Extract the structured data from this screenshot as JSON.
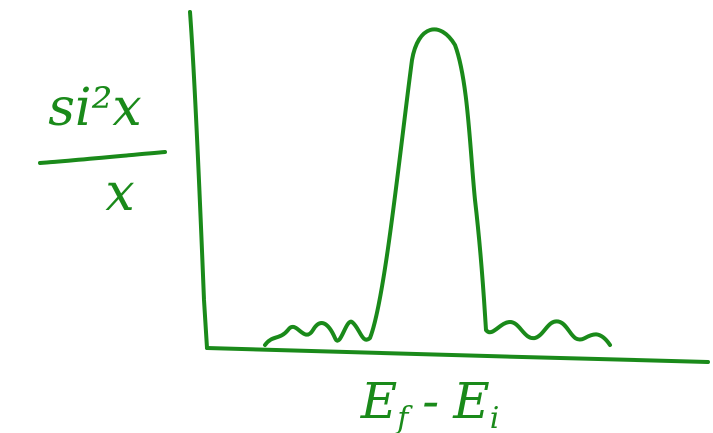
{
  "y_label": {
    "numerator": "si²x",
    "denominator": "x"
  },
  "x_label": {
    "first": "E",
    "first_sub": "f",
    "operator": "-",
    "second": "E",
    "second_sub": "i"
  }
}
